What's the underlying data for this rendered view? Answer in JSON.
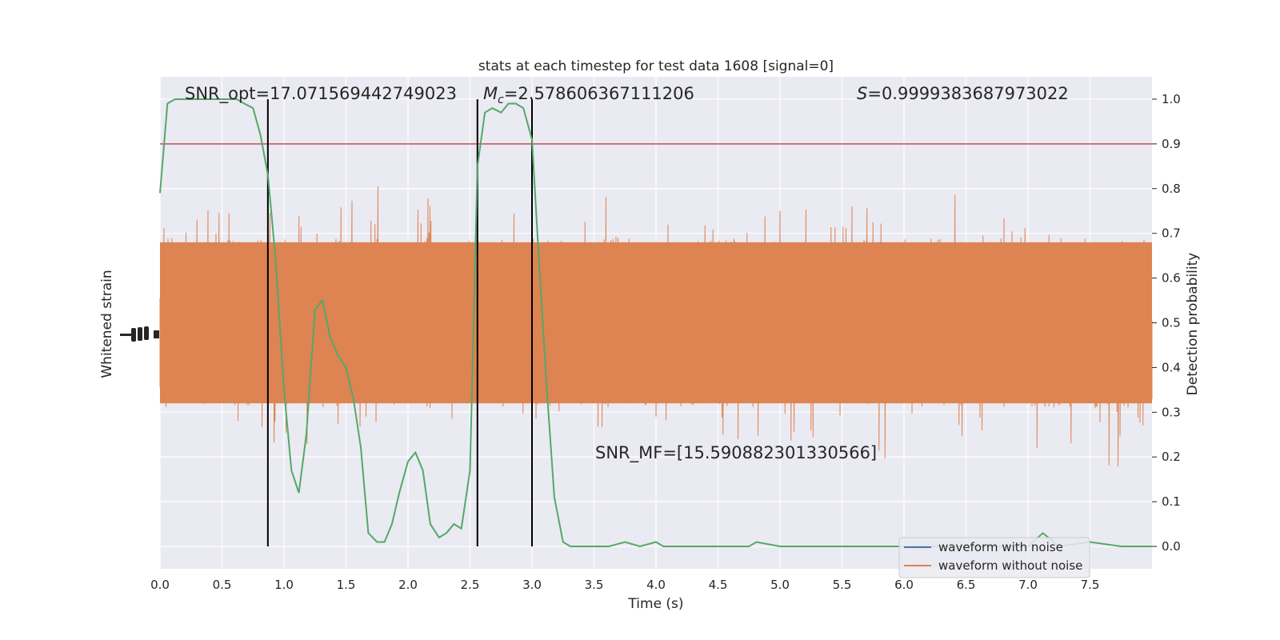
{
  "chart_data": {
    "type": "line",
    "title": "stats at each timestep for test data 1608 [signal=0]",
    "xlabel": "Time (s)",
    "ylabel_left": "Whitened strain",
    "ylabel_right": "Detection probability",
    "xlim": [
      0,
      8
    ],
    "ylim_right": [
      -0.05,
      1.05
    ],
    "x_ticks": [
      "0.0",
      "0.5",
      "1.0",
      "1.5",
      "2.0",
      "2.5",
      "3.0",
      "3.5",
      "4.0",
      "4.5",
      "5.0",
      "5.5",
      "6.0",
      "6.5",
      "7.0",
      "7.5"
    ],
    "y_ticks_right": [
      "0.0",
      "0.1",
      "0.2",
      "0.3",
      "0.4",
      "0.5",
      "0.6",
      "0.7",
      "0.8",
      "0.9",
      "1.0"
    ],
    "grid": true,
    "threshold": 0.9,
    "vlines": [
      0.87,
      2.56,
      3.0
    ],
    "annotations": {
      "snr_opt": "SNR_opt=17.071569442749023",
      "mc_symbol": "M",
      "mc_sub": "c",
      "mc_value": "=2.578606367111206",
      "s_symbol": "S",
      "s_value": "=0.9999383687973022",
      "snr_mf": "SNR_MF=[15.590882301330566]"
    },
    "series": [
      {
        "name": "waveform with noise",
        "color": "#4c72b0"
      },
      {
        "name": "waveform without noise",
        "color": "#dd8452"
      },
      {
        "color": "#55a868",
        "x": [
          0.0,
          0.06,
          0.12,
          0.18,
          0.25,
          0.31,
          0.37,
          0.43,
          0.5,
          0.56,
          0.62,
          0.68,
          0.75,
          0.81,
          0.87,
          0.93,
          1.0,
          1.06,
          1.12,
          1.18,
          1.25,
          1.31,
          1.37,
          1.43,
          1.5,
          1.56,
          1.62,
          1.68,
          1.75,
          1.81,
          1.87,
          1.93,
          2.0,
          2.06,
          2.12,
          2.18,
          2.25,
          2.31,
          2.37,
          2.43,
          2.5,
          2.56,
          2.62,
          2.68,
          2.75,
          2.81,
          2.87,
          2.93,
          3.0,
          3.06,
          3.12,
          3.18,
          3.25,
          3.31,
          3.37,
          3.5,
          3.62,
          3.75,
          3.87,
          4.0,
          4.06,
          4.25,
          4.5,
          4.75,
          4.81,
          5.0,
          5.25,
          5.5,
          6.0,
          6.5,
          6.75,
          7.0,
          7.12,
          7.25,
          7.5,
          7.75,
          8.0
        ],
        "y": [
          0.79,
          0.99,
          1.0,
          1.0,
          1.0,
          1.0,
          1.0,
          1.0,
          1.0,
          1.0,
          1.0,
          0.99,
          0.98,
          0.92,
          0.83,
          0.65,
          0.35,
          0.17,
          0.12,
          0.25,
          0.53,
          0.55,
          0.47,
          0.43,
          0.4,
          0.33,
          0.22,
          0.03,
          0.01,
          0.01,
          0.05,
          0.12,
          0.19,
          0.21,
          0.17,
          0.05,
          0.02,
          0.03,
          0.05,
          0.04,
          0.17,
          0.85,
          0.97,
          0.98,
          0.97,
          0.99,
          0.99,
          0.98,
          0.91,
          0.62,
          0.35,
          0.11,
          0.01,
          0.0,
          0.0,
          0.0,
          0.0,
          0.01,
          0.0,
          0.01,
          0.0,
          0.0,
          0.0,
          0.0,
          0.01,
          0.0,
          0.0,
          0.0,
          0.0,
          0.0,
          0.0,
          0.0,
          0.03,
          0.0,
          0.01,
          0.0,
          0.0
        ]
      }
    ]
  }
}
